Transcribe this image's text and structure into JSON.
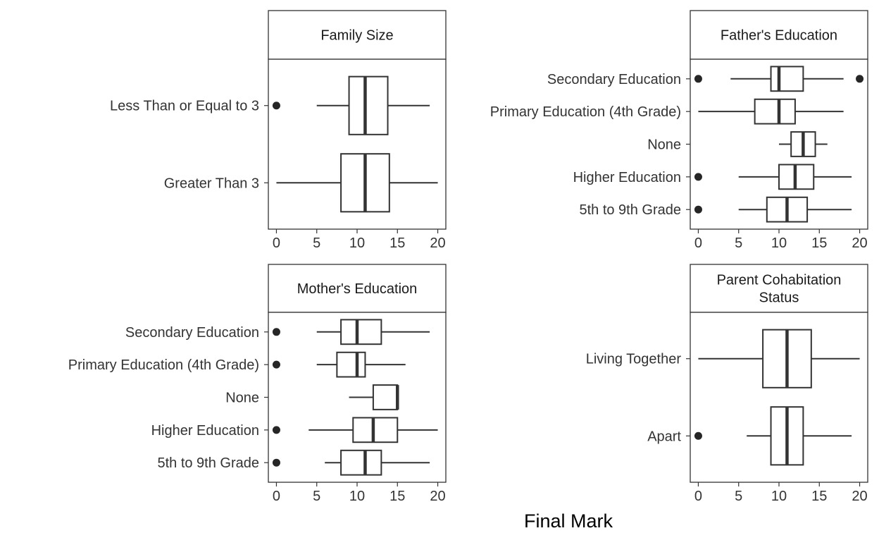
{
  "chart_data": {
    "type": "boxplot",
    "xlabel": "Final Mark",
    "xlim": [
      -1,
      21
    ],
    "x_ticks": [
      0,
      5,
      10,
      15,
      20
    ],
    "panels": [
      {
        "title": "Family Size",
        "categories": [
          {
            "label": "Less Than or Equal to 3",
            "min": 5,
            "q1": 9,
            "median": 11,
            "q3": 13.8,
            "max": 19,
            "outliers": [
              0
            ]
          },
          {
            "label": "Greater Than 3",
            "min": 0,
            "q1": 8,
            "median": 11,
            "q3": 14,
            "max": 20,
            "outliers": []
          }
        ]
      },
      {
        "title": "Father's Education",
        "categories": [
          {
            "label": "Secondary Education",
            "min": 4,
            "q1": 9,
            "median": 10,
            "q3": 13,
            "max": 18,
            "outliers": [
              0,
              20
            ]
          },
          {
            "label": "Primary Education (4th Grade)",
            "min": 0,
            "q1": 7,
            "median": 10,
            "q3": 12,
            "max": 18,
            "outliers": []
          },
          {
            "label": "None",
            "min": 10,
            "q1": 11.5,
            "median": 13,
            "q3": 14.5,
            "max": 16,
            "outliers": []
          },
          {
            "label": "Higher Education",
            "min": 5,
            "q1": 10,
            "median": 12,
            "q3": 14.3,
            "max": 19,
            "outliers": [
              0
            ]
          },
          {
            "label": "5th to 9th Grade",
            "min": 5,
            "q1": 8.5,
            "median": 11,
            "q3": 13.5,
            "max": 19,
            "outliers": [
              0
            ]
          }
        ]
      },
      {
        "title": "Mother's Education",
        "categories": [
          {
            "label": "Secondary Education",
            "min": 5,
            "q1": 8,
            "median": 10,
            "q3": 13,
            "max": 19,
            "outliers": [
              0
            ]
          },
          {
            "label": "Primary Education (4th Grade)",
            "min": 5,
            "q1": 7.5,
            "median": 10,
            "q3": 11,
            "max": 16,
            "outliers": [
              0
            ]
          },
          {
            "label": "None",
            "min": 9,
            "q1": 12,
            "median": 15,
            "q3": 15,
            "max": 15,
            "outliers": []
          },
          {
            "label": "Higher Education",
            "min": 4,
            "q1": 9.5,
            "median": 12,
            "q3": 15,
            "max": 20,
            "outliers": [
              0
            ]
          },
          {
            "label": "5th to 9th Grade",
            "min": 6,
            "q1": 8,
            "median": 11,
            "q3": 13,
            "max": 19,
            "outliers": [
              0
            ]
          }
        ]
      },
      {
        "title": "Parent Cohabitation Status",
        "title_lines": [
          "Parent Cohabitation",
          "Status"
        ],
        "categories": [
          {
            "label": "Living Together",
            "min": 0,
            "q1": 8,
            "median": 11,
            "q3": 14,
            "max": 20,
            "outliers": []
          },
          {
            "label": "Apart",
            "min": 6,
            "q1": 9,
            "median": 11,
            "q3": 13,
            "max": 19,
            "outliers": [
              0
            ]
          }
        ]
      }
    ]
  }
}
